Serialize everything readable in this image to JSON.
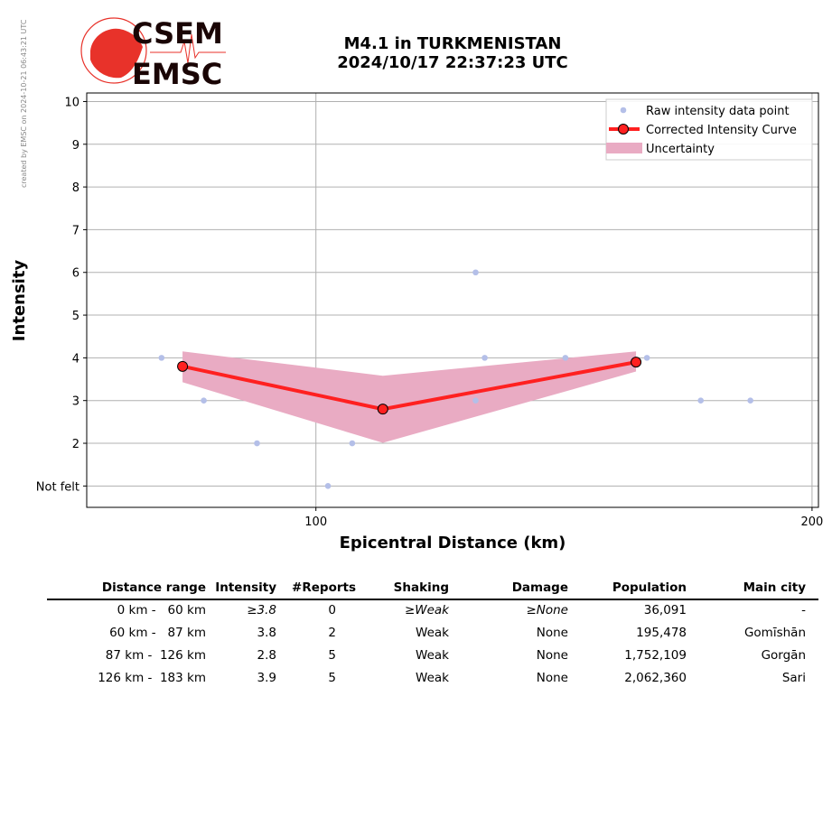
{
  "credit": "created by EMSC on 2024-10-21 06:43:21 UTC",
  "logo": {
    "top": "CSEM",
    "bottom": "EMSC"
  },
  "title": {
    "line1": "M4.1 in TURKMENISTAN",
    "line2": "2024/10/17 22:37:23 UTC"
  },
  "chart_data": {
    "type": "line",
    "xlabel": "Epicentral Distance (km)",
    "ylabel": "Intensity",
    "xscale": "log",
    "xlim": [
      72.6,
      201.8
    ],
    "ylim": [
      0.5,
      10.2
    ],
    "xticks": [
      100,
      200
    ],
    "xtick_labels": [
      "100",
      "200"
    ],
    "yticks": [
      1,
      2,
      3,
      4,
      5,
      6,
      7,
      8,
      9,
      10
    ],
    "ytick_labels": [
      "Not felt",
      "2",
      "3",
      "4",
      "5",
      "6",
      "7",
      "8",
      "9",
      "10"
    ],
    "grid": true,
    "legend_position": "top-right",
    "raw_points": {
      "name": "Raw intensity data point",
      "color": "#b4bfe8",
      "x": [
        80.6,
        85.5,
        92.1,
        101.7,
        105.2,
        125.0,
        125.0,
        126.6,
        141.7,
        158.8,
        171.2,
        183.5
      ],
      "y": [
        4,
        3,
        2,
        1,
        2,
        6,
        3,
        4,
        4,
        4,
        3,
        3
      ]
    },
    "curve": {
      "name": "Corrected Intensity Curve",
      "color": "#ff2020",
      "x": [
        83.0,
        109.8,
        156.4
      ],
      "y": [
        3.8,
        2.8,
        3.9
      ]
    },
    "uncertainty": {
      "name": "Uncertainty",
      "color": "#e9abc3",
      "x": [
        83.0,
        109.8,
        156.4
      ],
      "upper": [
        4.15,
        3.58,
        4.15
      ],
      "lower": [
        3.43,
        2.01,
        3.68
      ]
    }
  },
  "table": {
    "headers": [
      "Distance range",
      "Intensity",
      "#Reports",
      "Shaking",
      "Damage",
      "Population",
      "Main city"
    ],
    "rows": [
      {
        "range": "0 km -   60 km",
        "intensity": "≥3.8",
        "reports": "0",
        "shaking": "≥Weak",
        "damage": "≥None",
        "population": "36,091",
        "city": "-",
        "italic": true
      },
      {
        "range": "60 km -   87 km",
        "intensity": "3.8",
        "reports": "2",
        "shaking": "Weak",
        "damage": "None",
        "population": "195,478",
        "city": "Gomīshān"
      },
      {
        "range": "87 km -  126 km",
        "intensity": "2.8",
        "reports": "5",
        "shaking": "Weak",
        "damage": "None",
        "population": "1,752,109",
        "city": "Gorgān"
      },
      {
        "range": "126 km -  183 km",
        "intensity": "3.9",
        "reports": "5",
        "shaking": "Weak",
        "damage": "None",
        "population": "2,062,360",
        "city": "Sari"
      }
    ]
  }
}
